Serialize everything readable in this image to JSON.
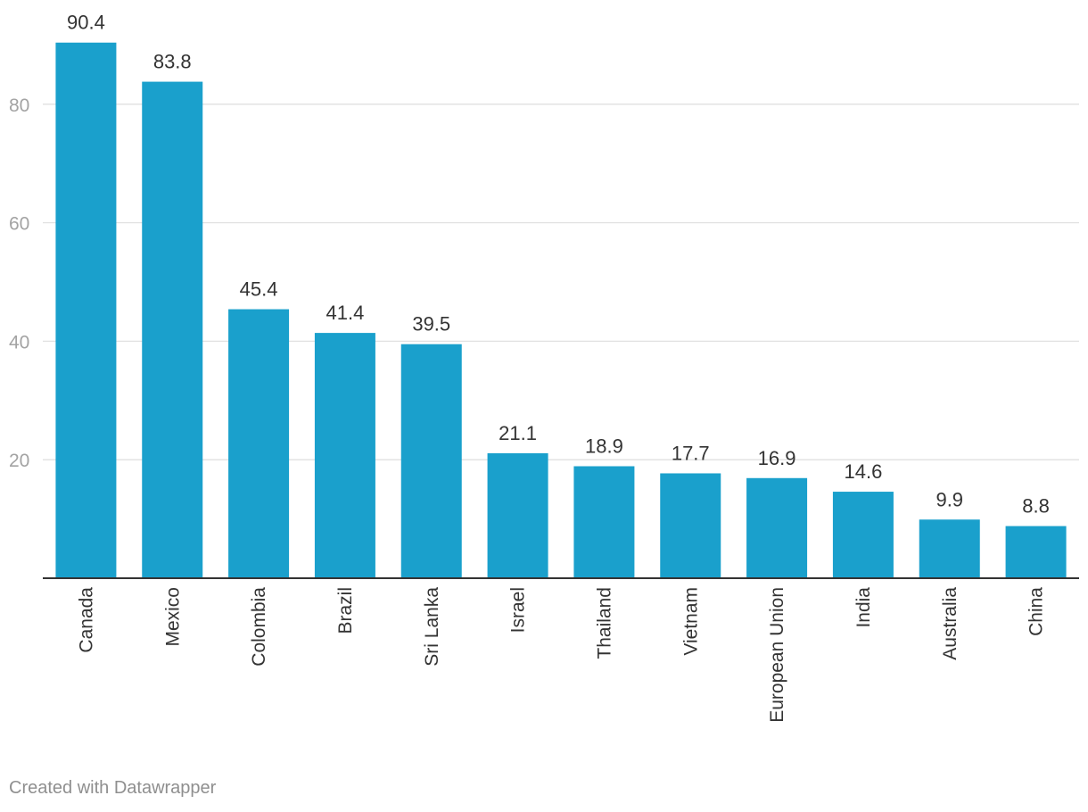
{
  "chart_data": {
    "type": "bar",
    "categories": [
      "Canada",
      "Mexico",
      "Colombia",
      "Brazil",
      "Sri Lanka",
      "Israel",
      "Thailand",
      "Vietnam",
      "European Union",
      "India",
      "Australia",
      "China"
    ],
    "values": [
      90.4,
      83.8,
      45.4,
      41.4,
      39.5,
      21.1,
      18.9,
      17.7,
      16.9,
      14.6,
      9.9,
      8.8
    ],
    "value_labels": [
      "90.4",
      "83.8",
      "45.4",
      "41.4",
      "39.5",
      "21.1",
      "18.9",
      "17.7",
      "16.9",
      "14.6",
      "9.9",
      "8.8"
    ],
    "yticks": [
      20,
      40,
      60,
      80
    ],
    "ylim": [
      0,
      90.4
    ],
    "grid": true,
    "bar_color": "#1aa0cc",
    "title": "",
    "xlabel": "",
    "ylabel": ""
  },
  "footer": {
    "credit": "Created with Datawrapper"
  }
}
